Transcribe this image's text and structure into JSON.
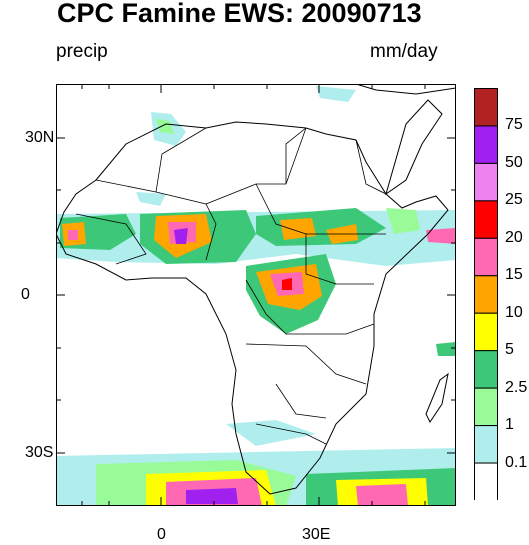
{
  "title": "CPC Famine EWS: 20090713",
  "left_label": "precip",
  "right_label": "mm/day",
  "y_ticks": [
    "30N",
    "0",
    "30S"
  ],
  "x_ticks": [
    "0",
    "30E"
  ],
  "colorbar": {
    "levels": [
      "0.1",
      "1",
      "2.5",
      "5",
      "10",
      "15",
      "20",
      "25",
      "50",
      "75"
    ],
    "colors": [
      "#ffffff",
      "#b0eeee",
      "#98fb98",
      "#3cc878",
      "#ffff00",
      "#ffa500",
      "#ff69b4",
      "#ff0000",
      "#ee82ee",
      "#a020f0",
      "#b22222"
    ]
  }
}
